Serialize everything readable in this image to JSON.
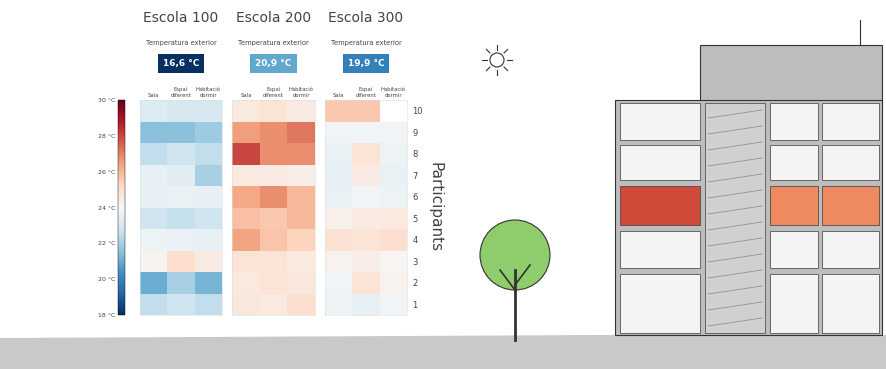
{
  "colorbar": {
    "range": [
      18,
      30
    ],
    "ticks": [
      {
        "value": 18,
        "label": "18 °C"
      },
      {
        "value": 20,
        "label": "20 °C"
      },
      {
        "value": 22,
        "label": "22 °C"
      },
      {
        "value": 24,
        "label": "24 °C"
      },
      {
        "value": 26,
        "label": "26 °C"
      },
      {
        "value": 28,
        "label": "28 °C"
      },
      {
        "value": 30,
        "label": "30 °C"
      }
    ]
  },
  "chart_data": [
    {
      "type": "heatmap",
      "title": "Escola 100",
      "subtitle": "Temperatura exterior",
      "outdoor_temperature": {
        "value": 16.6,
        "label": "16,6 °C"
      },
      "categories": [
        "Sala",
        "Espai diferent",
        "Habitació dormir"
      ],
      "rows": [
        1,
        2,
        3,
        4,
        5,
        6,
        7,
        8,
        9,
        10
      ],
      "cells": [
        [
          22.5,
          22.8,
          22.5
        ],
        [
          21.0,
          22.0,
          21.2
        ],
        [
          24.2,
          25.0,
          24.5
        ],
        [
          23.7,
          23.6,
          23.5
        ],
        [
          22.8,
          22.6,
          22.8
        ],
        [
          23.5,
          23.6,
          23.5
        ],
        [
          23.5,
          23.3,
          22.0
        ],
        [
          22.5,
          22.8,
          22.5
        ],
        [
          21.5,
          21.5,
          21.8
        ],
        [
          23.2,
          23.0,
          23.0
        ]
      ],
      "tick_labels": "x"
    },
    {
      "type": "heatmap",
      "title": "Escola 200",
      "subtitle": "Temperatura exterior",
      "outdoor_temperature": {
        "value": 20.9,
        "label": "20,9 °C"
      },
      "categories": [
        "Sala",
        "Espai diferent",
        "Habitació dormir"
      ],
      "rows": [
        1,
        2,
        3,
        4,
        5,
        6,
        7,
        8,
        9,
        10
      ],
      "cells": [
        [
          24.7,
          24.6,
          25.0
        ],
        [
          24.6,
          24.8,
          24.7
        ],
        [
          24.8,
          24.8,
          24.6
        ],
        [
          26.4,
          25.7,
          25.4
        ],
        [
          25.8,
          25.6,
          26.0
        ],
        [
          26.3,
          26.8,
          26.0
        ],
        [
          24.6,
          24.5,
          24.4
        ],
        [
          28.0,
          26.8,
          26.8
        ],
        [
          26.5,
          26.8,
          27.2
        ],
        [
          24.6,
          24.8,
          24.5
        ]
      ],
      "tick_labels": "x"
    },
    {
      "type": "heatmap",
      "title": "Escola 300",
      "subtitle": "Temperatura exterior",
      "outdoor_temperature": {
        "value": 19.9,
        "label": "19,9 °C"
      },
      "categories": [
        "Sala",
        "Espai diferent",
        "Habitació dormir"
      ],
      "rows": [
        1,
        2,
        3,
        4,
        5,
        6,
        7,
        8,
        9,
        10
      ],
      "ylabel": "Participants",
      "cells": [
        [
          23.7,
          23.5,
          23.8
        ],
        [
          23.8,
          24.8,
          24.2
        ],
        [
          24.2,
          24.4,
          24.1
        ],
        [
          24.9,
          24.8,
          25.0
        ],
        [
          24.3,
          24.5,
          24.6
        ],
        [
          23.6,
          23.8,
          23.7
        ],
        [
          23.5,
          24.5,
          23.6
        ],
        [
          23.6,
          24.8,
          23.7
        ],
        [
          23.8,
          23.8,
          23.8
        ],
        [
          25.6,
          25.6,
          null
        ]
      ]
    }
  ]
}
